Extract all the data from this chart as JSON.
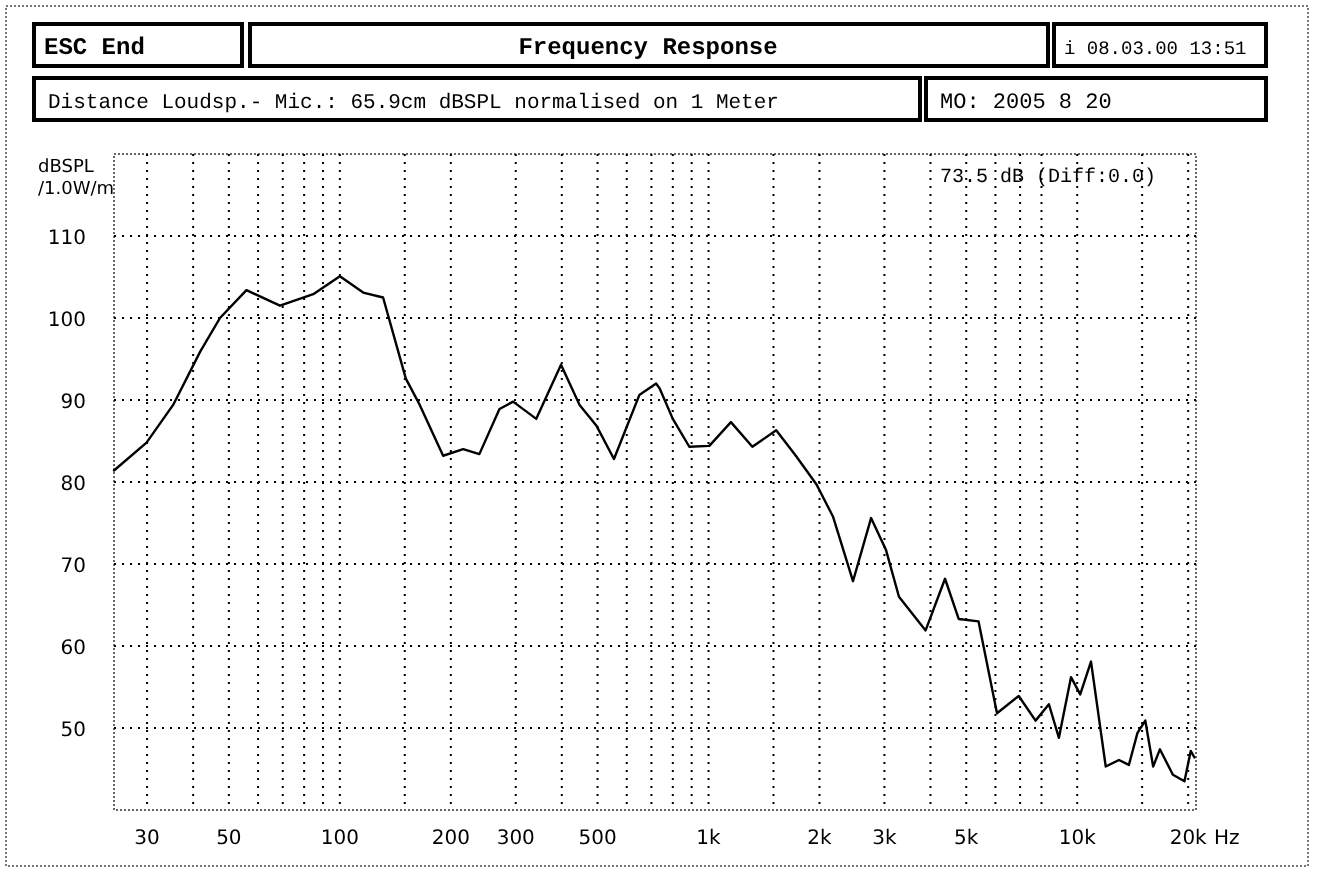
{
  "chart_data": {
    "type": "line",
    "title": "Frequency Response",
    "subtitle": "Distance Loudsp.- Mic.: 65.9cm dBSPL normalised on 1 Meter",
    "ylabel": "dBSPL\n/1.0W/m",
    "xlabel": "Hz",
    "annotations": [
      "73.5 dB (Diff:0.0)",
      "ESC End",
      "i 08.03.00 13:51",
      "MO: 2005 8 20"
    ],
    "log": "x",
    "grid": true,
    "marker": "none",
    "line_style": "solid",
    "xlim": [
      24.4,
      21000
    ],
    "ylim": [
      40,
      120
    ],
    "xticks": [
      {
        "value": 30,
        "label": "30"
      },
      {
        "value": 40,
        "label": null
      },
      {
        "value": 50,
        "label": "50"
      },
      {
        "value": 60,
        "label": null
      },
      {
        "value": 70,
        "label": null
      },
      {
        "value": 80,
        "label": null
      },
      {
        "value": 90,
        "label": null
      },
      {
        "value": 100,
        "label": "100"
      },
      {
        "value": 150,
        "label": null
      },
      {
        "value": 200,
        "label": "200"
      },
      {
        "value": 300,
        "label": "300"
      },
      {
        "value": 400,
        "label": null
      },
      {
        "value": 500,
        "label": "500"
      },
      {
        "value": 600,
        "label": null
      },
      {
        "value": 700,
        "label": null
      },
      {
        "value": 800,
        "label": null
      },
      {
        "value": 900,
        "label": null
      },
      {
        "value": 1000,
        "label": "1k"
      },
      {
        "value": 1500,
        "label": null
      },
      {
        "value": 2000,
        "label": "2k"
      },
      {
        "value": 3000,
        "label": "3k"
      },
      {
        "value": 4000,
        "label": null
      },
      {
        "value": 5000,
        "label": "5k"
      },
      {
        "value": 6000,
        "label": null
      },
      {
        "value": 7000,
        "label": null
      },
      {
        "value": 8000,
        "label": null
      },
      {
        "value": 10000,
        "label": "10k"
      },
      {
        "value": 15000,
        "label": null
      },
      {
        "value": 20000,
        "label": "20k"
      }
    ],
    "yticks": [
      50,
      60,
      70,
      80,
      90,
      100,
      110
    ],
    "series": [
      {
        "color": "#000000",
        "x": [
          24.4,
          29.9,
          35.3,
          41.8,
          47.3,
          55.8,
          68.8,
          84.7,
          100,
          115.7,
          131,
          151,
          164.7,
          190.6,
          216,
          239,
          271,
          295,
          341,
          398,
          447,
          496,
          554,
          649,
          721,
          737,
          800,
          887,
          1005,
          1150,
          1315,
          1526,
          1725,
          1963,
          2175,
          2465,
          2760,
          3030,
          3285,
          3880,
          4380,
          4770,
          5400,
          6060,
          6940,
          7710,
          8380,
          8920,
          9620,
          10190,
          10900,
          11950,
          12980,
          13810,
          14570,
          15300,
          16070,
          16760,
          18180,
          19540,
          20320,
          20800
        ],
        "values": [
          81.4,
          84.8,
          89.4,
          95.9,
          100,
          103.4,
          101.5,
          102.9,
          105.1,
          103.1,
          102.5,
          92.6,
          89.4,
          83.2,
          84.0,
          83.4,
          88.9,
          89.8,
          87.7,
          94.3,
          89.4,
          86.9,
          82.8,
          90.6,
          92.0,
          91.4,
          87.7,
          84.3,
          84.4,
          87.3,
          84.3,
          86.3,
          83.2,
          79.7,
          75.8,
          67.9,
          75.6,
          71.7,
          66.0,
          61.9,
          68.2,
          63.3,
          63.0,
          51.8,
          53.9,
          50.9,
          52.9,
          48.8,
          56.2,
          54.1,
          58.1,
          45.3,
          46.1,
          45.5,
          49.4,
          50.9,
          45.3,
          47.4,
          44.3,
          43.5,
          47.2,
          46.4
        ]
      }
    ]
  }
}
